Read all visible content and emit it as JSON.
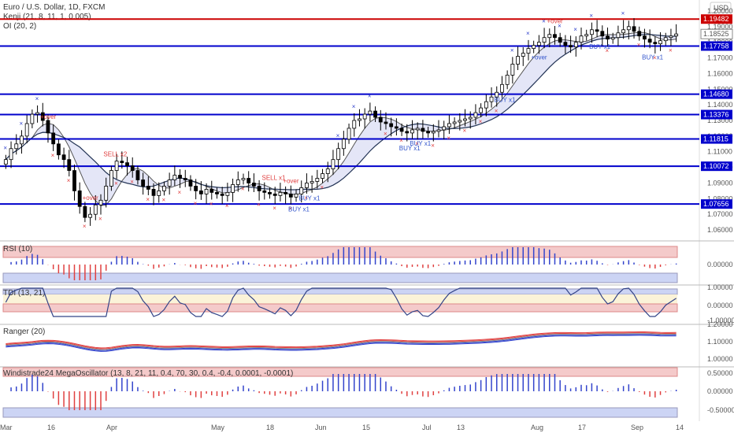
{
  "header": {
    "symbol": "Euro / U.S. Dollar, 1D, FXCM",
    "indicator1": "Kenji (21, 8, 11, 1, 0.005)",
    "indicator2": "OI (20, 2)",
    "currency": "USD"
  },
  "colors": {
    "up_candle": "#ffffff",
    "down_candle": "#000000",
    "candle_border": "#000000",
    "level_line": "#0000cc",
    "level_label_bg": "#0000cc",
    "resistance_line": "#cc0000",
    "resistance_label_bg": "#cc0000",
    "buy": "#3355cc",
    "sell": "#e04040",
    "cross": "#3344cc",
    "osc_pos": "#3344cc",
    "osc_neg": "#e04040",
    "band_red": "#f4caca",
    "band_blue": "#ccd4f4",
    "upper_band_fill": "#d8dcf4",
    "lower_band_fill": "#f4dcdc",
    "axis_text": "#555555"
  },
  "chart_data": [
    {
      "type": "candlestick",
      "title": "Euro / U.S. Dollar, 1D, FXCM",
      "ylim": [
        1.055,
        1.205
      ],
      "y_ticks": [
        1.06,
        1.07,
        1.08,
        1.09,
        1.1,
        1.11,
        1.12,
        1.13,
        1.14,
        1.15,
        1.16,
        1.17,
        1.18,
        1.19,
        1.2
      ],
      "y_tick_labels": [
        "1.06000",
        "1.07000",
        "1.08000",
        "1.09000",
        "1.10000",
        "1.11000",
        "1.12000",
        "1.13000",
        "1.14000",
        "1.15000",
        "1.16000",
        "1.17000",
        "1.18000",
        "1.19000",
        "1.20000"
      ],
      "x_labels": [
        "Mar",
        "16",
        "Apr",
        "May",
        "18",
        "Jun",
        "15",
        "Jul",
        "13",
        "Aug",
        "17",
        "Sep",
        "14"
      ],
      "price_levels": [
        {
          "value": 1.19482,
          "label": "1.19482",
          "kind": "resistance"
        },
        {
          "value": 1.17758,
          "label": "1.17758",
          "kind": "level"
        },
        {
          "value": 1.1468,
          "label": "1.14680",
          "kind": "level"
        },
        {
          "value": 1.13376,
          "label": "1.13376",
          "kind": "level"
        },
        {
          "value": 1.11815,
          "label": "1.11815",
          "kind": "level"
        },
        {
          "value": 1.10072,
          "label": "1.10072",
          "kind": "level"
        },
        {
          "value": 1.07656,
          "label": "1.07656",
          "kind": "level"
        }
      ],
      "current_price": {
        "value": 1.18525,
        "label": "1.18525"
      },
      "closes": [
        1.105,
        1.112,
        1.115,
        1.12,
        1.128,
        1.134,
        1.135,
        1.13,
        1.122,
        1.115,
        1.108,
        1.105,
        1.098,
        1.085,
        1.075,
        1.068,
        1.07,
        1.076,
        1.079,
        1.088,
        1.098,
        1.104,
        1.103,
        1.101,
        1.098,
        1.092,
        1.088,
        1.086,
        1.082,
        1.085,
        1.088,
        1.092,
        1.095,
        1.093,
        1.092,
        1.088,
        1.085,
        1.083,
        1.086,
        1.084,
        1.083,
        1.082,
        1.084,
        1.089,
        1.092,
        1.093,
        1.09,
        1.088,
        1.085,
        1.084,
        1.083,
        1.082,
        1.084,
        1.083,
        1.081,
        1.083,
        1.087,
        1.09,
        1.091,
        1.093,
        1.096,
        1.099,
        1.105,
        1.112,
        1.118,
        1.125,
        1.13,
        1.131,
        1.134,
        1.136,
        1.132,
        1.129,
        1.128,
        1.126,
        1.125,
        1.123,
        1.122,
        1.124,
        1.125,
        1.123,
        1.122,
        1.123,
        1.124,
        1.126,
        1.128,
        1.129,
        1.13,
        1.131,
        1.132,
        1.135,
        1.138,
        1.142,
        1.145,
        1.148,
        1.153,
        1.159,
        1.166,
        1.171,
        1.173,
        1.176,
        1.178,
        1.18,
        1.183,
        1.185,
        1.183,
        1.18,
        1.178,
        1.177,
        1.18,
        1.184,
        1.185,
        1.188,
        1.187,
        1.184,
        1.182,
        1.183,
        1.186,
        1.188,
        1.19,
        1.187,
        1.184,
        1.182,
        1.18,
        1.179,
        1.181,
        1.183,
        1.184,
        1.1853
      ],
      "sma_line": "present",
      "cloud": "present",
      "signals": [
        {
          "text": "SELL x2",
          "kind": "sell",
          "i": 20
        },
        {
          "text": "SELL x1",
          "kind": "sell",
          "i": 50
        },
        {
          "text": "+over",
          "kind": "sell",
          "i": 8
        },
        {
          "text": "+over",
          "kind": "sell",
          "i": 16
        },
        {
          "text": "+over",
          "kind": "sell",
          "i": 54
        },
        {
          "text": "BUY x1",
          "kind": "buy",
          "i": 57
        },
        {
          "text": "BUY x1",
          "kind": "buy",
          "i": 55
        },
        {
          "text": "BUY x1",
          "kind": "buy",
          "i": 76
        },
        {
          "text": "BUY x1",
          "kind": "buy",
          "i": 78
        },
        {
          "text": "BUY x1",
          "kind": "buy",
          "i": 94
        },
        {
          "text": "+over",
          "kind": "sell",
          "i": 104
        },
        {
          "text": "+over",
          "kind": "buy",
          "i": 101
        },
        {
          "text": "BUY x1",
          "kind": "buy",
          "i": 112
        },
        {
          "text": "BUY x1",
          "kind": "buy",
          "i": 122
        },
        {
          "text": "BUY x1",
          "kind": "buy",
          "i": 131
        }
      ]
    },
    {
      "type": "bar",
      "title": "RSI (10)",
      "ylim": [
        -0.25,
        0.25
      ],
      "y_tick_labels": [
        "0.00000"
      ],
      "values": "derived-from-closes"
    },
    {
      "type": "line",
      "title": "TDI (13, 21)",
      "ylim": [
        -1.1,
        1.1
      ],
      "y_tick_labels": [
        "1.00000",
        "0.00000",
        "-1.00000"
      ]
    },
    {
      "type": "line",
      "title": "Ranger (20)",
      "ylim": [
        1.0,
        1.25
      ],
      "y_tick_labels": [
        "1.20000",
        "1.10000",
        "1.00000"
      ]
    },
    {
      "type": "bar",
      "title": "Windistrade24 MegaOscillator (13, 8, 21, 11, 0.4, 70, 30, 0.4, -0.4, 0.0001, -0.0001)",
      "ylim": [
        -0.7,
        0.7
      ],
      "y_tick_labels": [
        "0.50000",
        "0.00000",
        "-0.50000"
      ]
    }
  ]
}
